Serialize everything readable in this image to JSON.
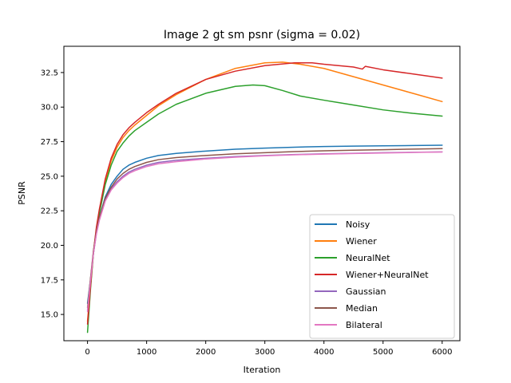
{
  "chart_data": {
    "type": "line",
    "title": "Image 2 gt sm psnr (sigma = 0.02)",
    "xlabel": "Iteration",
    "ylabel": "PSNR",
    "xlim": [
      -400,
      6300
    ],
    "ylim": [
      13.1,
      34.4
    ],
    "xticks": [
      0,
      1000,
      2000,
      3000,
      4000,
      5000,
      6000
    ],
    "xtick_labels": [
      "0",
      "1000",
      "2000",
      "3000",
      "4000",
      "5000",
      "6000"
    ],
    "yticks": [
      15.0,
      17.5,
      20.0,
      22.5,
      25.0,
      27.5,
      30.0,
      32.5
    ],
    "ytick_labels": [
      "15.0",
      "17.5",
      "20.0",
      "22.5",
      "25.0",
      "27.5",
      "30.0",
      "32.5"
    ],
    "grid": false,
    "legend_position": "lower-right",
    "series": [
      {
        "name": "Noisy",
        "color": "#1f77b4",
        "x": [
          0,
          50,
          100,
          150,
          200,
          300,
          400,
          500,
          600,
          700,
          800,
          1000,
          1200,
          1500,
          2000,
          2500,
          3000,
          3500,
          4000,
          4500,
          5000,
          5500,
          6000
        ],
        "y": [
          15.8,
          17.5,
          19.4,
          20.9,
          22.0,
          23.5,
          24.4,
          25.0,
          25.5,
          25.8,
          26.0,
          26.3,
          26.5,
          26.65,
          26.82,
          26.95,
          27.03,
          27.1,
          27.15,
          27.18,
          27.2,
          27.22,
          27.24
        ]
      },
      {
        "name": "Wiener",
        "color": "#ff7f0e",
        "x": [
          0,
          50,
          100,
          150,
          200,
          300,
          400,
          500,
          600,
          700,
          800,
          1000,
          1200,
          1500,
          2000,
          2500,
          3000,
          3300,
          3600,
          4000,
          4500,
          5000,
          5500,
          6000
        ],
        "y": [
          14.5,
          17.0,
          19.5,
          21.2,
          22.5,
          24.6,
          26.1,
          27.1,
          27.8,
          28.3,
          28.7,
          29.4,
          30.1,
          30.9,
          32.0,
          32.8,
          33.2,
          33.25,
          33.1,
          32.8,
          32.2,
          31.6,
          31.0,
          30.4
        ]
      },
      {
        "name": "NeuralNet",
        "color": "#2ca02c",
        "x": [
          0,
          50,
          100,
          150,
          200,
          300,
          400,
          500,
          600,
          700,
          800,
          1000,
          1200,
          1500,
          2000,
          2500,
          2800,
          3000,
          3300,
          3600,
          4000,
          4500,
          5000,
          5500,
          6000
        ],
        "y": [
          13.7,
          16.8,
          19.4,
          21.0,
          22.3,
          24.4,
          25.8,
          26.8,
          27.4,
          27.9,
          28.3,
          28.9,
          29.5,
          30.2,
          31.0,
          31.5,
          31.6,
          31.55,
          31.2,
          30.8,
          30.5,
          30.15,
          29.8,
          29.55,
          29.35
        ]
      },
      {
        "name": "Wiener+NeuralNet",
        "color": "#d62728",
        "x": [
          0,
          50,
          100,
          150,
          200,
          300,
          400,
          500,
          600,
          700,
          800,
          1000,
          1200,
          1500,
          2000,
          2500,
          3000,
          3500,
          3800,
          4000,
          4500,
          4650,
          4700,
          5000,
          5500,
          6000
        ],
        "y": [
          14.3,
          17.0,
          19.5,
          21.3,
          22.6,
          24.8,
          26.3,
          27.3,
          28.0,
          28.5,
          28.9,
          29.6,
          30.2,
          31.0,
          32.0,
          32.6,
          33.0,
          33.2,
          33.2,
          33.1,
          32.9,
          32.75,
          32.95,
          32.7,
          32.4,
          32.1
        ]
      },
      {
        "name": "Gaussian",
        "color": "#9467bd",
        "x": [
          0,
          50,
          100,
          150,
          200,
          300,
          400,
          500,
          600,
          700,
          800,
          1000,
          1200,
          1500,
          2000,
          2500,
          3000,
          3500,
          4000,
          4500,
          5000,
          5500,
          6000
        ],
        "y": [
          15.3,
          17.5,
          19.5,
          20.9,
          21.9,
          23.3,
          24.1,
          24.6,
          25.0,
          25.3,
          25.5,
          25.8,
          26.0,
          26.15,
          26.3,
          26.42,
          26.5,
          26.57,
          26.62,
          26.66,
          26.7,
          26.73,
          26.76
        ]
      },
      {
        "name": "Median",
        "color": "#8c564b",
        "x": [
          0,
          50,
          100,
          150,
          200,
          300,
          400,
          500,
          600,
          700,
          800,
          1000,
          1200,
          1500,
          2000,
          2500,
          3000,
          3500,
          4000,
          4500,
          5000,
          5500,
          6000
        ],
        "y": [
          15.5,
          17.6,
          19.6,
          21.0,
          22.0,
          23.4,
          24.2,
          24.8,
          25.2,
          25.5,
          25.7,
          26.0,
          26.2,
          26.35,
          26.5,
          26.62,
          26.7,
          26.78,
          26.84,
          26.88,
          26.92,
          26.96,
          27.0
        ]
      },
      {
        "name": "Bilateral",
        "color": "#e377c2",
        "x": [
          0,
          50,
          100,
          150,
          200,
          300,
          400,
          500,
          600,
          700,
          800,
          1000,
          1200,
          1500,
          2000,
          2500,
          3000,
          3500,
          4000,
          4500,
          5000,
          5500,
          6000
        ],
        "y": [
          15.2,
          17.4,
          19.4,
          20.8,
          21.8,
          23.2,
          24.0,
          24.5,
          24.9,
          25.2,
          25.4,
          25.7,
          25.9,
          26.05,
          26.25,
          26.38,
          26.48,
          26.55,
          26.6,
          26.64,
          26.68,
          26.72,
          26.75
        ]
      }
    ]
  }
}
